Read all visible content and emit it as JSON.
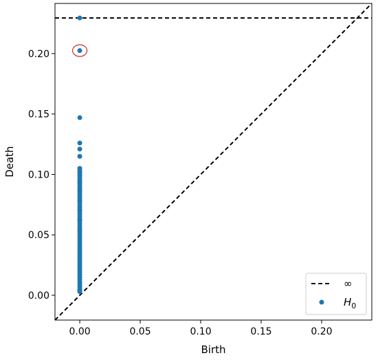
{
  "chart_data": {
    "type": "scatter",
    "title": "",
    "xlabel": "Birth",
    "ylabel": "Death",
    "xlim": [
      -0.0205,
      0.2415
    ],
    "ylim": [
      -0.0205,
      0.2415
    ],
    "x_ticks": [
      0.0,
      0.05,
      0.1,
      0.15,
      0.2
    ],
    "y_ticks": [
      0.0,
      0.05,
      0.1,
      0.15,
      0.2
    ],
    "x_tick_labels": [
      "0.00",
      "0.05",
      "0.10",
      "0.15",
      "0.20"
    ],
    "y_tick_labels": [
      "0.00",
      "0.05",
      "0.10",
      "0.15",
      "0.20"
    ],
    "grid": false,
    "infinity_level": 0.2295,
    "diagonal": true,
    "highlighted_point": {
      "x": 0.0,
      "y": 0.2025,
      "color": "#d62728"
    },
    "legend": {
      "placement": "bottom-right",
      "entries": [
        {
          "label": "∞",
          "style": "dashed-line",
          "color": "#000000"
        },
        {
          "label": "H",
          "subscript": "0",
          "style": "dot",
          "color": "#1f77b4"
        }
      ]
    },
    "series": [
      {
        "name": "H0",
        "color": "#1f77b4",
        "x": [
          0,
          0,
          0,
          0,
          0,
          0,
          0,
          0,
          0,
          0,
          0,
          0,
          0,
          0,
          0,
          0,
          0,
          0,
          0,
          0,
          0,
          0,
          0,
          0,
          0,
          0,
          0,
          0,
          0,
          0,
          0,
          0,
          0,
          0,
          0,
          0,
          0,
          0,
          0,
          0,
          0,
          0,
          0,
          0,
          0,
          0,
          0,
          0,
          0,
          0,
          0,
          0,
          0,
          0,
          0,
          0,
          0,
          0,
          0,
          0,
          0,
          0,
          0,
          0,
          0,
          0
        ],
        "y": [
          0.2295,
          0.2025,
          0.147,
          0.126,
          0.121,
          0.115,
          0.105,
          0.103,
          0.101,
          0.099,
          0.097,
          0.095,
          0.093,
          0.091,
          0.089,
          0.087,
          0.085,
          0.083,
          0.081,
          0.079,
          0.077,
          0.075,
          0.073,
          0.071,
          0.069,
          0.067,
          0.065,
          0.063,
          0.061,
          0.059,
          0.057,
          0.055,
          0.053,
          0.051,
          0.049,
          0.047,
          0.045,
          0.043,
          0.041,
          0.039,
          0.037,
          0.035,
          0.033,
          0.031,
          0.029,
          0.027,
          0.025,
          0.023,
          0.021,
          0.019,
          0.017,
          0.015,
          0.013,
          0.011,
          0.009,
          0.007,
          0.005,
          0.004,
          0.003,
          0.0545,
          0.0625,
          0.0705,
          0.0785,
          0.0865,
          0.0945,
          0.1025
        ]
      }
    ]
  }
}
